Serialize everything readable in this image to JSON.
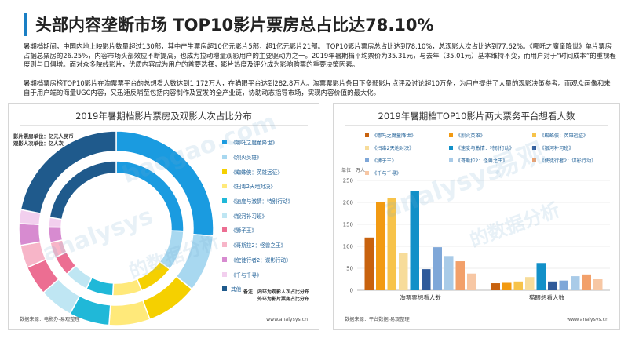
{
  "header": {
    "title": "头部内容垄断市场 TOP10影片票房总占比达78.10%"
  },
  "paragraphs": [
    "暑期档期间，中国内地上映影片数量超过130部，其中产生票房超10亿元影片5部，超1亿元影片21部。 TOP10影片票房总占比达到78.10%，总观影人次占比达到77.62%。《哪吒之魔童降世》单片票房占据总票房的26.25%，内容市场头部效应不断提高，也成为拉动增量观影用户的主要驱动力之一。2019年暑期档平均票价为35.31元，与去年（35.01元）基本维持不变，而用户对于“时间成本”的重视程度则与日俱增。面对众多院线影片，优质内容成为用户的首要选择，影片热度及评分成为影响购票的重要决策因素。",
    "暑期档票房榜TOP10影片在淘票票平台的总想看人数达到1,172万人，在猫眼平台达到282.8万人。淘票票影片条目下多部影片点评及讨论超10万条，为用户提供了大量的观影决策参考。而观众画像和来自于用户端的海量UGC内容，又迅速反哺至包括内容制作及宣发的全产业链，协助动态指导市场，实现内容价值的最大化。"
  ],
  "left_panel": {
    "title": "2019年暑期档影片票房及观影人次占比分布",
    "info_line1": "影片票房单位：亿元人民币",
    "info_line2": "观影人次单位：亿人次",
    "note_line1": "备注：内环为观影人次占比分布",
    "note_line2": "外环为影片票房占比分布",
    "source": "数据来源：电影办-易观整理",
    "url": "www.analysys.cn"
  },
  "right_panel": {
    "title": "2019年暑期档TOP10影片两大票务平台想看人数",
    "unit": "单位：万人",
    "source": "数据来源：平台数据-易观整理",
    "url": "www.analysys.cn"
  },
  "watermark": {
    "brand_cn": "易观",
    "brand_en": "analysys",
    "slogan": "的数据分析",
    "site": "baogao.com"
  },
  "colors": {
    "accent": "#1a7fc4",
    "legend_text": "#1e5f96"
  },
  "chart_data": [
    {
      "type": "pie",
      "variant": "double-donut",
      "title": "2019年暑期档影片票房及观影人次占比分布",
      "labels": [
        "《哪吒之魔童降世》",
        "《烈火英雄》",
        "《蜘蛛侠：英雄远征》",
        "《扫毒2天地对决》",
        "《速度与激情：特别行动》",
        "《银河补习班》",
        "《狮子王》",
        "《哥斯拉2：怪兽之王》",
        "《使徒行者2：谍影行动》",
        "《千与千寻》",
        "其他"
      ],
      "colors": [
        "#1a9be0",
        "#a8d8f0",
        "#f5d000",
        "#ffe97a",
        "#20b8d8",
        "#bfe6f3",
        "#ec6e92",
        "#f7b5c8",
        "#d78bd0",
        "#f2cfee",
        "#1f5a8c"
      ],
      "series": [
        {
          "name": "外环：影片票房",
          "values": [
            26.25,
            9.5,
            8.6,
            6.8,
            6.7,
            5.6,
            4.9,
            3.8,
            3.6,
            2.3,
            21.9
          ]
        },
        {
          "name": "内环：观影人次",
          "values": [
            25.7,
            9.7,
            8.4,
            7.0,
            6.5,
            5.8,
            4.8,
            3.7,
            3.7,
            2.3,
            22.4
          ]
        }
      ]
    },
    {
      "type": "bar",
      "title": "2019年暑期档TOP10影片两大票务平台想看人数",
      "categories": [
        "淘票票想看人数",
        "猫眼想看人数"
      ],
      "ylabel": "单位：万人",
      "ylim": [
        0,
        250
      ],
      "yticks": [
        0,
        50,
        100,
        150,
        200,
        250
      ],
      "series": [
        {
          "name": "《哪吒之魔童降世》",
          "color": "#c8620e",
          "values": [
            120,
            16
          ]
        },
        {
          "name": "《烈火英雄》",
          "color": "#f29a12",
          "values": [
            200,
            17
          ]
        },
        {
          "name": "《蜘蛛侠：英雄远征》",
          "color": "#f7c34a",
          "values": [
            210,
            20
          ]
        },
        {
          "name": "《扫毒2天地对决》",
          "color": "#f7dc9a",
          "values": [
            85,
            30
          ]
        },
        {
          "name": "《速度与激情：特别行动》",
          "color": "#1290c8",
          "values": [
            225,
            62
          ]
        },
        {
          "name": "《银河补习班》",
          "color": "#2f5a9a",
          "values": [
            48,
            20
          ]
        },
        {
          "name": "《狮子王》",
          "color": "#7fa7d8",
          "values": [
            98,
            22
          ]
        },
        {
          "name": "《哥斯拉2：怪兽之王》",
          "color": "#a9cbe8",
          "values": [
            78,
            32
          ]
        },
        {
          "name": "《使徒行者2：谍影行动》",
          "color": "#f2a06a",
          "values": [
            66,
            36
          ]
        },
        {
          "name": "《千与千寻》",
          "color": "#f7c7a4",
          "values": [
            38,
            25
          ]
        }
      ]
    }
  ]
}
